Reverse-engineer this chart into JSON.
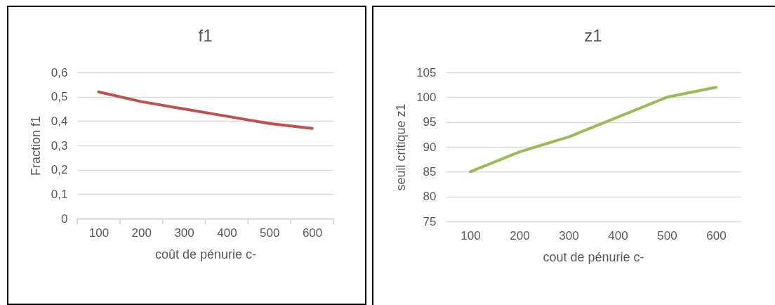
{
  "chart_data": [
    {
      "type": "line",
      "title": "f1",
      "xlabel": "coût de pénurie c-",
      "ylabel": "Fraction f1",
      "categories": [
        "100",
        "200",
        "300",
        "400",
        "500",
        "600"
      ],
      "series": [
        {
          "color": "#c0504d",
          "values": [
            0.52,
            0.48,
            0.45,
            0.42,
            0.39,
            0.37
          ]
        }
      ],
      "ylim": [
        0,
        0.6
      ],
      "yticks": [
        0,
        {
          "value": 0.1,
          "label": "0,1"
        },
        {
          "value": 0.2,
          "label": "0,2"
        },
        {
          "value": 0.3,
          "label": "0,3"
        },
        {
          "value": 0.4,
          "label": "0,4"
        },
        {
          "value": 0.5,
          "label": "0,5"
        },
        {
          "value": 0.6,
          "label": "0,6"
        }
      ],
      "grid": "y"
    },
    {
      "type": "line",
      "title": "z1",
      "xlabel": "cout de pénurie c-",
      "ylabel": "seuil critique z1",
      "categories": [
        "100",
        "200",
        "300",
        "400",
        "500",
        "600"
      ],
      "series": [
        {
          "color": "#9bbb59",
          "values": [
            85,
            89,
            92,
            96,
            100,
            102
          ]
        }
      ],
      "ylim": [
        75,
        105
      ],
      "yticks": [
        75,
        80,
        85,
        90,
        95,
        100,
        105
      ],
      "grid": "y"
    }
  ]
}
